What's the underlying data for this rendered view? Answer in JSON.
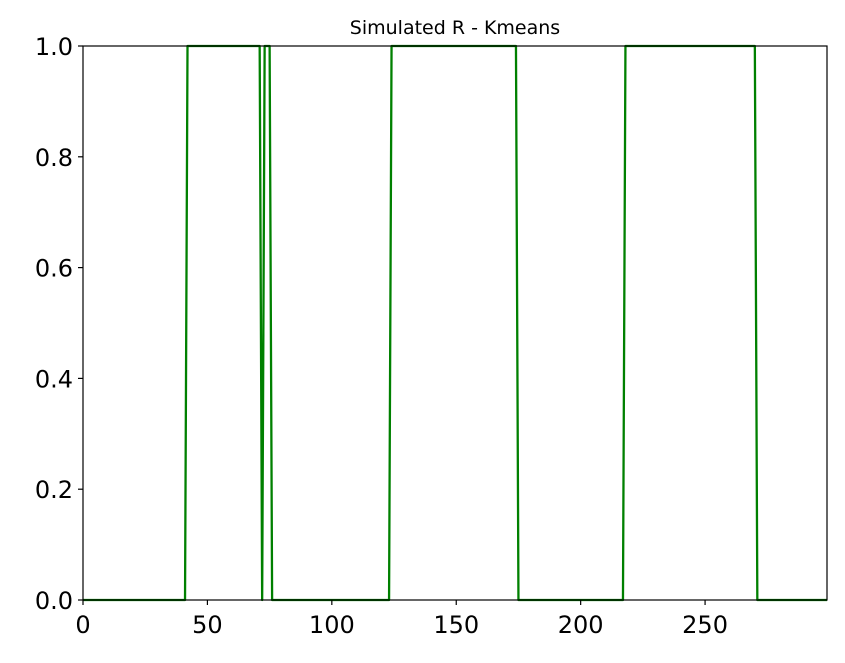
{
  "chart_data": {
    "type": "line",
    "title": "Simulated R - Kmeans",
    "xlabel": "",
    "ylabel": "",
    "xlim": [
      0,
      299
    ],
    "ylim": [
      0,
      1
    ],
    "xticks": [
      0,
      50,
      100,
      150,
      200,
      250
    ],
    "xtick_labels": [
      "0",
      "50",
      "100",
      "150",
      "200",
      "250"
    ],
    "yticks": [
      0,
      0.2,
      0.4,
      0.6,
      0.8,
      1.0
    ],
    "ytick_labels": [
      "0.0",
      "0.2",
      "0.4",
      "0.6",
      "0.8",
      "1.0"
    ],
    "grid": false,
    "series": [
      {
        "color": "#008000",
        "x": [
          0,
          41,
          42,
          71,
          72,
          73,
          75,
          76,
          123,
          124,
          174,
          175,
          217,
          218,
          270,
          271,
          299
        ],
        "y": [
          0,
          0,
          1,
          1,
          0,
          1,
          1,
          0,
          0,
          1,
          1,
          0,
          0,
          1,
          1,
          0,
          0
        ]
      }
    ]
  }
}
